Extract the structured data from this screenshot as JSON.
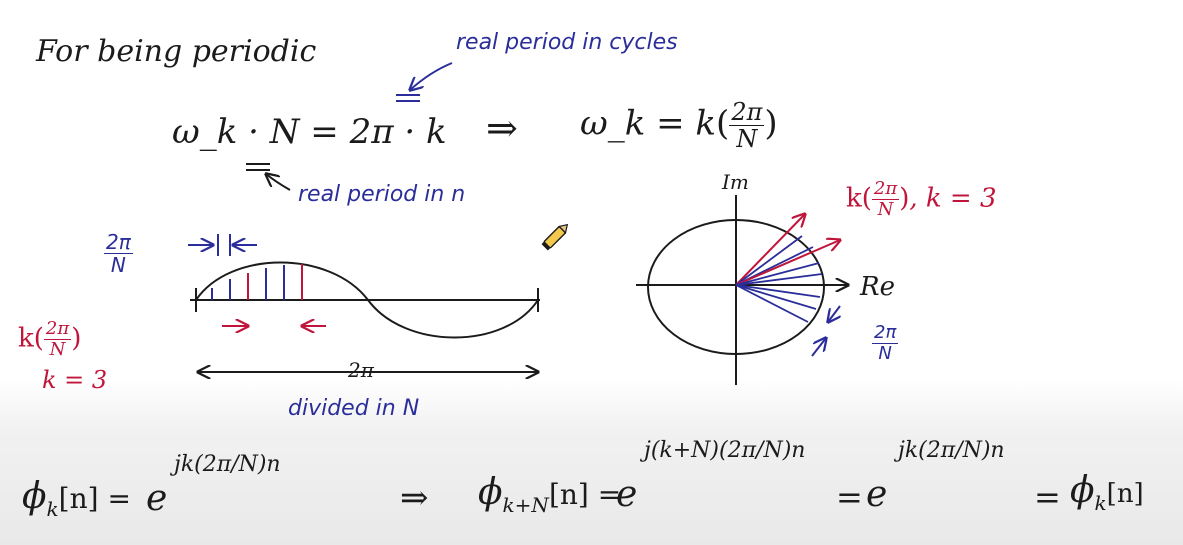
{
  "colors": {
    "ink": "#1b1b1b",
    "blue": "#2b2e9a",
    "red": "#c0163b",
    "background": "#ffffff"
  },
  "heading": "For being periodic",
  "annotations": {
    "real_period_cycles": "real period in cycles",
    "real_period_n": "real period in n",
    "divided": "divided in N",
    "two_pi": "2π",
    "k_value": "k = 3",
    "re_label": "Re",
    "im_label": "Im",
    "phasor_label_tail": ", k = 3"
  },
  "equations": {
    "main": "ω_k · N = 2π · k",
    "implies": "⇒",
    "omega_lhs": "ω_k = k",
    "frac_num": "2π",
    "frac_den": "N"
  },
  "bottom": {
    "phi": "ϕ",
    "k_sub": "k",
    "kN_sub": "k+N",
    "n_bracket": "[n] =",
    "n_bracket_end": "[n]",
    "e": "e",
    "eq": "=",
    "implies": "⇒",
    "exp1": "jk(2π/N)n",
    "exp2": "j(k+N)(2π/N)n",
    "exp3": "jk(2π/N)n"
  },
  "icon": "pencil-icon",
  "diagram": {
    "sine_divisions": 7,
    "phasor_count": 7,
    "highlight_k": 3
  }
}
